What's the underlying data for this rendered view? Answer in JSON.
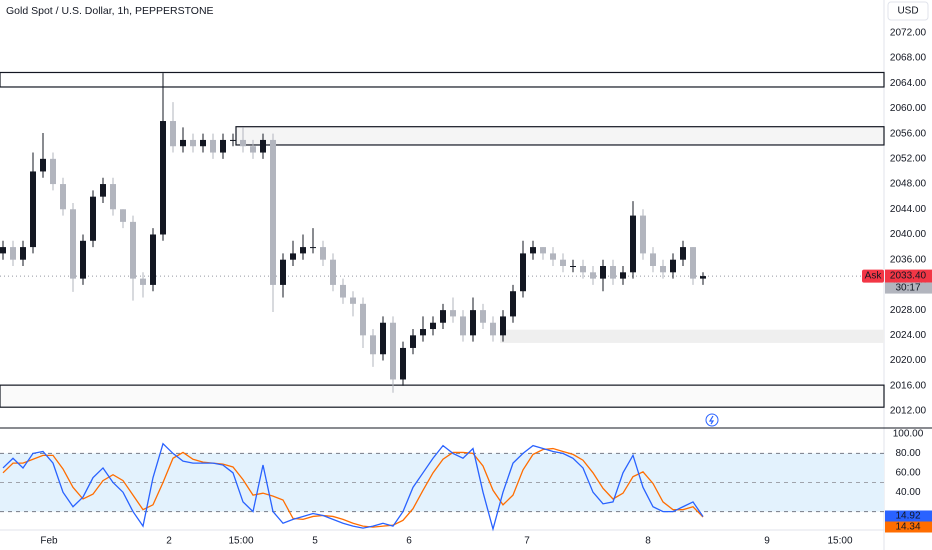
{
  "chart_data": [
    {
      "type": "candlestick",
      "title": "Gold Spot / U.S. Dollar, 1h, PEPPERSTONE",
      "currency": "USD",
      "x": [
        0,
        1,
        2,
        3,
        4,
        5,
        6,
        7,
        8,
        9,
        10,
        11,
        12,
        13,
        14,
        15,
        16,
        17,
        18,
        19,
        20,
        21,
        22,
        23,
        24,
        25,
        26,
        27,
        28,
        29,
        30,
        31,
        32,
        33,
        34,
        35,
        36,
        37,
        38,
        39,
        40,
        41,
        42,
        43,
        44,
        45,
        46,
        47,
        48,
        49,
        50,
        51,
        52,
        53,
        54,
        55,
        56,
        57,
        58,
        59,
        60,
        61,
        62,
        63,
        64,
        65,
        66,
        67,
        68,
        69,
        70
      ],
      "open": [
        2037,
        2038,
        2036,
        2038,
        2050,
        2052,
        2048,
        2044,
        2033,
        2039,
        2046,
        2048,
        2044,
        2042,
        2033,
        2032,
        2040,
        2058,
        2054,
        2055,
        2054,
        2055,
        2053,
        2055,
        2055,
        2054,
        2053,
        2055,
        2032,
        2036,
        2037,
        2038,
        2038,
        2036,
        2032,
        2030,
        2029,
        2024,
        2021,
        2026,
        2017,
        2022,
        2024,
        2025,
        2026,
        2028,
        2027,
        2024,
        2028,
        2026,
        2024,
        2027,
        2031,
        2037,
        2038,
        2037,
        2036,
        2035,
        2035,
        2034,
        2033,
        2035,
        2033,
        2034,
        2043,
        2037,
        2035,
        2034,
        2036,
        2038,
        2033
      ],
      "high": [
        2039,
        2039,
        2039,
        2053,
        2056.1,
        2053,
        2049,
        2045,
        2040,
        2047,
        2049,
        2049,
        2044,
        2043,
        2034,
        2041,
        2065.6,
        2061,
        2057,
        2056,
        2056,
        2056,
        2056,
        2056,
        2057,
        2055,
        2056,
        2056,
        2037,
        2039,
        2040,
        2041,
        2039,
        2037,
        2033,
        2031,
        2030,
        2025,
        2027,
        2027,
        2023,
        2025,
        2027,
        2027,
        2029,
        2030,
        2028,
        2030,
        2029,
        2027,
        2028,
        2032,
        2039,
        2039,
        2038,
        2038,
        2037,
        2036,
        2036,
        2035,
        2036,
        2036,
        2035,
        2045.3,
        2044,
        2038,
        2036,
        2037,
        2039,
        2038,
        2034
      ],
      "low": [
        2036,
        2035,
        2035,
        2037,
        2049,
        2047,
        2043,
        2030.9,
        2032,
        2038,
        2045,
        2043,
        2041,
        2029.5,
        2030,
        2031,
        2039,
        2053,
        2053,
        2053,
        2053,
        2052,
        2052,
        2054,
        2053,
        2052,
        2052,
        2027.7,
        2030,
        2035,
        2036,
        2037,
        2035,
        2031,
        2029,
        2027,
        2022,
        2019,
        2020,
        2014.9,
        2016,
        2021,
        2023,
        2024,
        2025,
        2026,
        2023,
        2023,
        2025,
        2023,
        2023,
        2026,
        2030,
        2036,
        2036,
        2035,
        2034,
        2034,
        2033,
        2032,
        2031,
        2032,
        2032,
        2033,
        2036,
        2034,
        2033,
        2033,
        2035,
        2032,
        2032
      ],
      "close": [
        2038,
        2036,
        2038,
        2050,
        2052,
        2048,
        2044,
        2033,
        2039,
        2046,
        2048,
        2044,
        2042,
        2033,
        2032,
        2040,
        2058,
        2054,
        2055,
        2054,
        2055,
        2053,
        2055,
        2055,
        2054,
        2053,
        2055,
        2032,
        2036,
        2037,
        2038,
        2038,
        2036,
        2032,
        2030,
        2029,
        2024,
        2021,
        2026,
        2017,
        2022,
        2024,
        2025,
        2026,
        2028,
        2027,
        2024,
        2028,
        2026,
        2024,
        2027,
        2031,
        2037,
        2038,
        2037,
        2036,
        2035,
        2035,
        2034,
        2033,
        2035,
        2033,
        2034,
        2043,
        2037,
        2035,
        2034,
        2036,
        2038,
        2033,
        2033.4
      ],
      "up_color": "#131722",
      "down_color": "#b2b5be",
      "xlim": [
        -0.3,
        88.1
      ],
      "ylim": [
        2009.3,
        2077.2
      ],
      "yticks": [
        {
          "value": 2012,
          "label": "2012.00"
        },
        {
          "value": 2016,
          "label": "2016.00"
        },
        {
          "value": 2020,
          "label": "2020.00"
        },
        {
          "value": 2024,
          "label": "2024.00"
        },
        {
          "value": 2028,
          "label": "2028.00"
        },
        {
          "value": 2032,
          "label": "2032.00"
        },
        {
          "value": 2036,
          "label": "2036.00"
        },
        {
          "value": 2040,
          "label": "2040.00"
        },
        {
          "value": 2044,
          "label": "2044.00"
        },
        {
          "value": 2048,
          "label": "2048.00"
        },
        {
          "value": 2052,
          "label": "2052.00"
        },
        {
          "value": 2056,
          "label": "2056.00"
        },
        {
          "value": 2060,
          "label": "2060.00"
        },
        {
          "value": 2064,
          "label": "2064.00"
        },
        {
          "value": 2068,
          "label": "2068.00"
        },
        {
          "value": 2072,
          "label": "2072.00"
        }
      ],
      "zones": [
        {
          "low": 2063.4,
          "high": 2065.7,
          "border": true,
          "color": "#ffffff"
        },
        {
          "low": 2054.2,
          "high": 2057.1,
          "start": 23.3,
          "border": true,
          "color": "#f5f5f5"
        },
        {
          "low": 2022.8,
          "high": 2024.9,
          "start": 49.7,
          "border": false,
          "color": "#efefef"
        },
        {
          "low": 2012.6,
          "high": 2016.1,
          "border": true,
          "color": "#fafafa"
        }
      ],
      "last_price": {
        "value": 2033.4,
        "label": "2033.40"
      },
      "price_side": "Ask",
      "countdown": "30:17",
      "last_color": "#f23645"
    },
    {
      "type": "line",
      "x": [
        0,
        1,
        2,
        3,
        4,
        5,
        6,
        7,
        8,
        9,
        10,
        11,
        12,
        13,
        14,
        15,
        16,
        17,
        18,
        19,
        20,
        21,
        22,
        23,
        24,
        25,
        26,
        27,
        28,
        29,
        30,
        31,
        32,
        33,
        34,
        35,
        36,
        37,
        38,
        39,
        40,
        41,
        42,
        43,
        44,
        45,
        46,
        47,
        48,
        49,
        50,
        51,
        52,
        53,
        54,
        55,
        56,
        57,
        58,
        59,
        60,
        61,
        62,
        63,
        64,
        65,
        66,
        67,
        68,
        69,
        70
      ],
      "series": [
        {
          "color": "#2962ff",
          "values": [
            65,
            75,
            65,
            80,
            82,
            70,
            40,
            25,
            35,
            55,
            65,
            50,
            40,
            20,
            5,
            55,
            90,
            80,
            72,
            70,
            70,
            70,
            68,
            60,
            30,
            20,
            68,
            20,
            8,
            12,
            15,
            18,
            16,
            12,
            8,
            5,
            3,
            5,
            8,
            5,
            20,
            45,
            60,
            75,
            88,
            80,
            75,
            85,
            40,
            2,
            40,
            70,
            80,
            88,
            85,
            82,
            80,
            75,
            65,
            40,
            28,
            30,
            60,
            78,
            45,
            25,
            20,
            20,
            25,
            30,
            14.92
          ]
        },
        {
          "color": "#ff6d00",
          "values": [
            60,
            70,
            70,
            74,
            78,
            78,
            64,
            45,
            33,
            38,
            52,
            58,
            52,
            37,
            22,
            27,
            50,
            75,
            81,
            74,
            71,
            70,
            69,
            66,
            53,
            37,
            39,
            36,
            32,
            13,
            12,
            15,
            16,
            15,
            12,
            8,
            5,
            4,
            5,
            6,
            11,
            23,
            42,
            60,
            74,
            81,
            81,
            80,
            67,
            42,
            27,
            37,
            63,
            79,
            84,
            85,
            82,
            79,
            73,
            60,
            44,
            33,
            39,
            56,
            61,
            49,
            30,
            22,
            22,
            25,
            14.34
          ]
        }
      ],
      "band": [
        20,
        80
      ],
      "middle": 50,
      "band_color": "#e3f2fd",
      "xlim": [
        -0.3,
        88.1
      ],
      "ylim": [
        0,
        106.2
      ],
      "yticks": [
        {
          "value": 40,
          "label": "40.00"
        },
        {
          "value": 60,
          "label": "60.00"
        },
        {
          "value": 80,
          "label": "80.00"
        },
        {
          "value": 100,
          "label": "100.00"
        }
      ],
      "xticks": [
        {
          "value": 4.6,
          "label": "Feb"
        },
        {
          "value": 16.6,
          "label": "2"
        },
        {
          "value": 23.8,
          "label": "15:00"
        },
        {
          "value": 31.2,
          "label": "5"
        },
        {
          "value": 40.6,
          "label": "6"
        },
        {
          "value": 52.4,
          "label": "7"
        },
        {
          "value": 64.5,
          "label": "8"
        },
        {
          "value": 76.4,
          "label": "9"
        },
        {
          "value": 83.7,
          "label": "15:00"
        }
      ]
    }
  ]
}
